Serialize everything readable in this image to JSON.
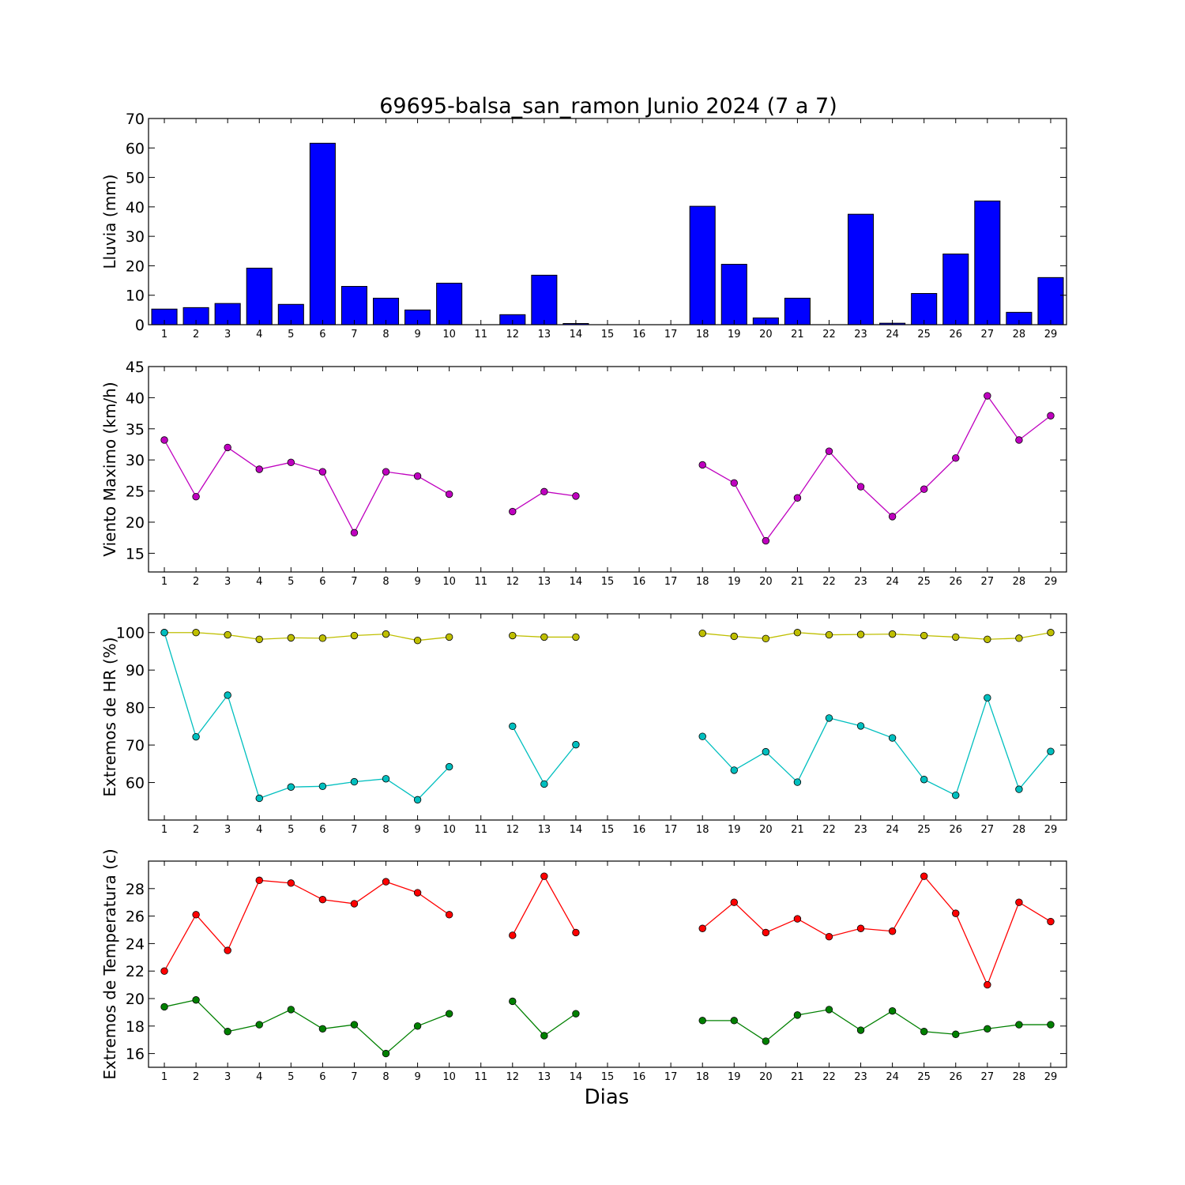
{
  "figure": {
    "title": "69695-balsa_san_ramon Junio 2024  (7 a 7)",
    "xlabel": "Dias"
  },
  "chart_data": [
    {
      "type": "bar",
      "ylabel": "Lluvia (mm)",
      "categories": [
        1,
        2,
        3,
        4,
        5,
        6,
        7,
        8,
        9,
        10,
        11,
        12,
        13,
        14,
        15,
        16,
        17,
        18,
        19,
        20,
        21,
        22,
        23,
        24,
        25,
        26,
        27,
        28,
        29
      ],
      "values": [
        5.3,
        5.8,
        7.2,
        19.2,
        6.9,
        61.6,
        13.0,
        9.0,
        5.0,
        14.1,
        0,
        3.4,
        16.8,
        0.4,
        0,
        0,
        0,
        40.2,
        20.5,
        2.3,
        9.0,
        0,
        37.5,
        0.5,
        10.6,
        24.0,
        42.0,
        4.2,
        16.0
      ],
      "ylim": [
        0,
        70
      ],
      "yticks": [
        0,
        10,
        20,
        30,
        40,
        50,
        60,
        70
      ],
      "color": "#0000ff"
    },
    {
      "type": "line",
      "ylabel": "Viento Maximo (km/h)",
      "x": [
        1,
        2,
        3,
        4,
        5,
        6,
        7,
        8,
        9,
        10,
        11,
        12,
        13,
        14,
        15,
        16,
        17,
        18,
        19,
        20,
        21,
        22,
        23,
        24,
        25,
        26,
        27,
        28,
        29
      ],
      "series": [
        {
          "values": [
            33.2,
            24.1,
            32.0,
            28.5,
            29.6,
            28.1,
            18.3,
            28.1,
            27.4,
            24.5,
            null,
            21.7,
            24.9,
            24.2,
            null,
            null,
            null,
            29.2,
            26.3,
            17.0,
            23.9,
            31.4,
            25.7,
            20.9,
            25.3,
            30.3,
            40.3,
            33.2,
            37.1
          ],
          "color": "#bf00bf"
        }
      ],
      "ylim": [
        12,
        45
      ],
      "yticks": [
        15,
        20,
        25,
        30,
        35,
        40,
        45
      ]
    },
    {
      "type": "line",
      "ylabel": "Extremos de HR (%)",
      "x": [
        1,
        2,
        3,
        4,
        5,
        6,
        7,
        8,
        9,
        10,
        11,
        12,
        13,
        14,
        15,
        16,
        17,
        18,
        19,
        20,
        21,
        22,
        23,
        24,
        25,
        26,
        27,
        28,
        29
      ],
      "series": [
        {
          "values": [
            100,
            100,
            99.4,
            98.2,
            98.6,
            98.5,
            99.2,
            99.6,
            97.9,
            98.8,
            null,
            99.2,
            98.8,
            98.8,
            null,
            null,
            null,
            99.8,
            99.0,
            98.4,
            100,
            99.4,
            99.5,
            99.6,
            99.2,
            98.8,
            98.2,
            98.5,
            100
          ],
          "color": "#bfbf00"
        },
        {
          "values": [
            100,
            72.2,
            83.3,
            55.8,
            58.8,
            59.0,
            60.2,
            61.0,
            55.4,
            64.2,
            null,
            75.0,
            59.6,
            70.1,
            null,
            null,
            null,
            72.3,
            63.3,
            68.2,
            60.1,
            77.2,
            75.1,
            71.9,
            60.8,
            56.6,
            82.6,
            58.2,
            68.3
          ],
          "color": "#00bfbf"
        }
      ],
      "ylim": [
        50,
        105
      ],
      "yticks": [
        60,
        70,
        80,
        90,
        100
      ]
    },
    {
      "type": "line",
      "ylabel": "Extremos de Temperatura (c)",
      "x": [
        1,
        2,
        3,
        4,
        5,
        6,
        7,
        8,
        9,
        10,
        11,
        12,
        13,
        14,
        15,
        16,
        17,
        18,
        19,
        20,
        21,
        22,
        23,
        24,
        25,
        26,
        27,
        28,
        29
      ],
      "series": [
        {
          "values": [
            22.0,
            26.1,
            23.5,
            28.6,
            28.4,
            27.2,
            26.9,
            28.5,
            27.7,
            26.1,
            null,
            24.6,
            28.9,
            24.8,
            null,
            null,
            null,
            25.1,
            27.0,
            24.8,
            25.8,
            24.5,
            25.1,
            24.9,
            28.9,
            26.2,
            21.0,
            27.0,
            25.6
          ],
          "color": "#ff0000"
        },
        {
          "values": [
            19.4,
            19.9,
            17.6,
            18.1,
            19.2,
            17.8,
            18.1,
            16.0,
            18.0,
            18.9,
            null,
            19.8,
            17.3,
            18.9,
            null,
            null,
            null,
            18.4,
            18.4,
            16.9,
            18.8,
            19.2,
            17.7,
            19.1,
            17.6,
            17.4,
            17.8,
            18.1,
            18.1
          ],
          "color": "#008000"
        }
      ],
      "ylim": [
        15,
        30
      ],
      "yticks": [
        16,
        18,
        20,
        22,
        24,
        26,
        28
      ]
    }
  ]
}
